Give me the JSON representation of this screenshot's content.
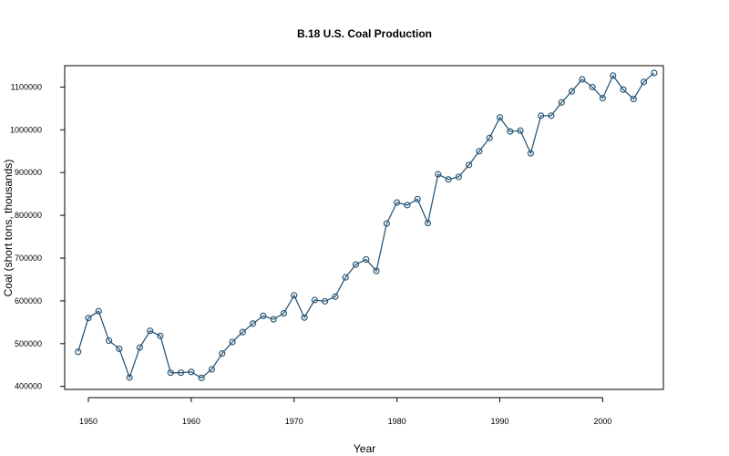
{
  "chart_data": {
    "type": "line",
    "title": "B.18 U.S. Coal Production",
    "xlabel": "Year",
    "ylabel": "Coal (short tons, thousands)",
    "xlim": [
      1947.7,
      2005.9
    ],
    "ylim": [
      393000,
      1150000
    ],
    "x_ticks": [
      1950,
      1960,
      1970,
      1980,
      1990,
      2000
    ],
    "y_ticks": [
      400000,
      500000,
      600000,
      700000,
      800000,
      900000,
      1000000,
      1100000
    ],
    "grid": false,
    "legend": "none",
    "markers": "open-circle",
    "series": [
      {
        "x": [
          1949,
          1950,
          1951,
          1952,
          1953,
          1954,
          1955,
          1956,
          1957,
          1958,
          1959,
          1960,
          1961,
          1962,
          1963,
          1964,
          1965,
          1966,
          1967,
          1968,
          1969,
          1970,
          1971,
          1972,
          1973,
          1974,
          1975,
          1976,
          1977,
          1978,
          1979,
          1980,
          1981,
          1982,
          1983,
          1984,
          1985,
          1986,
          1987,
          1988,
          1989,
          1990,
          1991,
          1992,
          1993,
          1994,
          1995,
          1996,
          1997,
          1998,
          1999,
          2000,
          2001,
          2002,
          2003,
          2004,
          2005
        ],
        "values": [
          481000,
          560000,
          576000,
          507000,
          488000,
          421000,
          491000,
          530000,
          518000,
          432000,
          432000,
          434000,
          420000,
          440000,
          477000,
          504000,
          527000,
          547000,
          565000,
          557000,
          571000,
          613000,
          561000,
          602000,
          599000,
          610000,
          655000,
          685000,
          697000,
          670000,
          781000,
          830000,
          824000,
          838000,
          782000,
          896000,
          884000,
          890000,
          918000,
          950000,
          981000,
          1029000,
          996000,
          998000,
          945000,
          1033000,
          1033000,
          1064000,
          1090000,
          1118000,
          1100000,
          1074000,
          1127000,
          1094000,
          1072000,
          1112000,
          1133000
        ]
      }
    ],
    "colors": {
      "line": "#2e5a7a",
      "marker": "#2e5a7a",
      "axis": "#000000"
    }
  }
}
